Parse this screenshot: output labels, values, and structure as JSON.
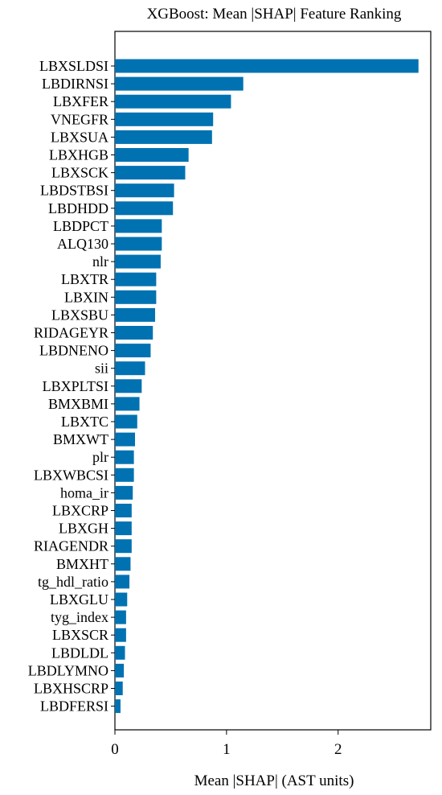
{
  "chart_data": {
    "type": "bar",
    "orientation": "horizontal",
    "title": "XGBoost: Mean |SHAP| Feature Ranking",
    "xlabel": "Mean |SHAP| (AST units)",
    "ylabel": "",
    "xlim": [
      0,
      2.83
    ],
    "xticks": [
      0,
      1,
      2
    ],
    "bar_color": "#0072b2",
    "categories": [
      "LBXSLDSI",
      "LBDIRNSI",
      "LBXFER",
      "VNEGFR",
      "LBXSUA",
      "LBXHGB",
      "LBXSCK",
      "LBDSTBSI",
      "LBDHDD",
      "LBDPCT",
      "ALQ130",
      "nlr",
      "LBXTR",
      "LBXIN",
      "LBXSBU",
      "RIDAGEYR",
      "LBDNENO",
      "sii",
      "LBXPLTSI",
      "BMXBMI",
      "LBXTC",
      "BMXWT",
      "plr",
      "LBXWBCSI",
      "homa_ir",
      "LBXCRP",
      "LBXGH",
      "RIAGENDR",
      "BMXHT",
      "tg_hdl_ratio",
      "LBXGLU",
      "tyg_index",
      "LBXSCR",
      "LBDLDL",
      "LBDLYMNO",
      "LBXHSCRP",
      "LBDFERSI"
    ],
    "values": [
      2.72,
      1.15,
      1.04,
      0.88,
      0.87,
      0.66,
      0.63,
      0.53,
      0.52,
      0.42,
      0.42,
      0.41,
      0.37,
      0.37,
      0.36,
      0.34,
      0.32,
      0.27,
      0.24,
      0.22,
      0.2,
      0.18,
      0.17,
      0.17,
      0.16,
      0.15,
      0.15,
      0.15,
      0.14,
      0.13,
      0.11,
      0.1,
      0.1,
      0.09,
      0.08,
      0.07,
      0.05
    ]
  }
}
